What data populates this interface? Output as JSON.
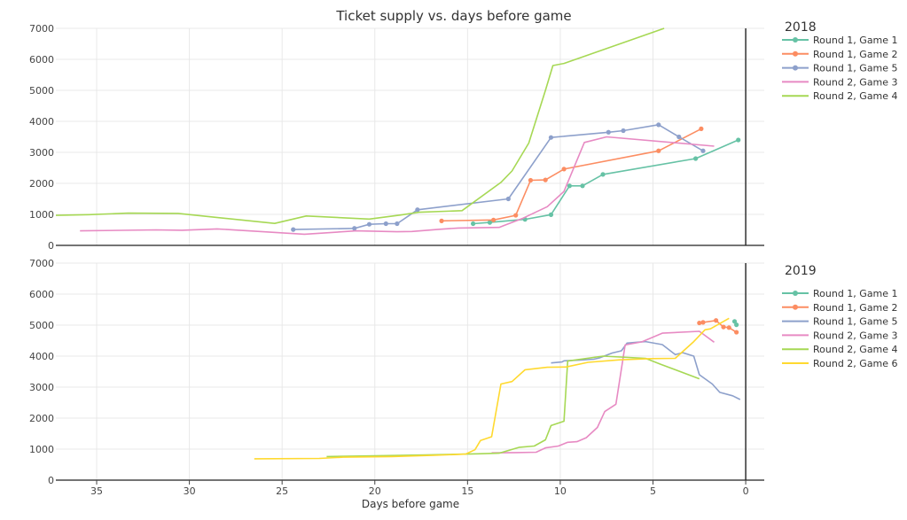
{
  "chart_data": {
    "type": "line",
    "title": "Ticket supply vs. days before game",
    "xlabel": "Days before game",
    "ylabel": "",
    "x_direction": "reversed",
    "xlim": [
      37.2,
      -1.0
    ],
    "x_ticks": [
      35,
      30,
      25,
      20,
      15,
      10,
      5,
      0
    ],
    "grid": true,
    "legend_placement": "right",
    "panels": [
      {
        "legend_title": "2018",
        "ylim": [
          0,
          7000
        ],
        "y_ticks": [
          0,
          1000,
          2000,
          3000,
          4000,
          5000,
          6000,
          7000
        ],
        "series": [
          {
            "name": "Round 1, Game 1",
            "color": "#66c2a5",
            "markers": true,
            "points": [
              [
                14.7,
                700
              ],
              [
                13.8,
                740
              ],
              [
                11.9,
                840
              ],
              [
                10.5,
                990
              ],
              [
                9.5,
                1920
              ],
              [
                8.8,
                1920
              ],
              [
                7.7,
                2290
              ],
              [
                2.7,
                2800
              ],
              [
                0.4,
                3400
              ]
            ]
          },
          {
            "name": "Round 1, Game 2",
            "color": "#fc8d62",
            "markers": true,
            "points": [
              [
                16.4,
                790
              ],
              [
                13.6,
                820
              ],
              [
                12.4,
                970
              ],
              [
                11.6,
                2100
              ],
              [
                10.8,
                2110
              ],
              [
                9.8,
                2460
              ],
              [
                4.7,
                3050
              ],
              [
                2.4,
                3760
              ]
            ]
          },
          {
            "name": "Round 1, Game 5",
            "color": "#8da0cb",
            "markers": true,
            "points": [
              [
                24.4,
                510
              ],
              [
                21.1,
                550
              ],
              [
                20.3,
                680
              ],
              [
                19.4,
                700
              ],
              [
                18.8,
                700
              ],
              [
                17.7,
                1150
              ],
              [
                12.8,
                1500
              ],
              [
                10.5,
                3480
              ],
              [
                7.4,
                3650
              ],
              [
                6.6,
                3700
              ],
              [
                4.7,
                3890
              ],
              [
                3.6,
                3500
              ],
              [
                2.3,
                3050
              ]
            ]
          },
          {
            "name": "Round 2, Game 3",
            "color": "#e78ac3",
            "markers": false,
            "points": [
              [
                35.9,
                470
              ],
              [
                31.8,
                500
              ],
              [
                30.4,
                490
              ],
              [
                28.5,
                530
              ],
              [
                23.8,
                360
              ],
              [
                21.0,
                470
              ],
              [
                18.8,
                440
              ],
              [
                18.0,
                450
              ],
              [
                16.5,
                520
              ],
              [
                15.5,
                560
              ],
              [
                13.3,
                580
              ],
              [
                12.0,
                880
              ],
              [
                10.7,
                1250
              ],
              [
                9.8,
                1740
              ],
              [
                8.7,
                3320
              ],
              [
                7.5,
                3500
              ],
              [
                1.7,
                3200
              ]
            ]
          },
          {
            "name": "Round 2, Game 4",
            "color": "#a6d854",
            "markers": false,
            "points": [
              [
                37.2,
                970
              ],
              [
                35.4,
                990
              ],
              [
                33.3,
                1040
              ],
              [
                30.6,
                1030
              ],
              [
                25.4,
                710
              ],
              [
                23.7,
                950
              ],
              [
                20.3,
                850
              ],
              [
                18.6,
                980
              ],
              [
                17.6,
                1070
              ],
              [
                15.3,
                1120
              ],
              [
                13.2,
                2030
              ],
              [
                12.6,
                2400
              ],
              [
                11.7,
                3300
              ],
              [
                10.8,
                5000
              ],
              [
                10.4,
                5800
              ],
              [
                9.8,
                5870
              ],
              [
                4.4,
                7000
              ]
            ]
          }
        ]
      },
      {
        "legend_title": "2019",
        "ylim": [
          0,
          7000
        ],
        "y_ticks": [
          0,
          1000,
          2000,
          3000,
          4000,
          5000,
          6000,
          7000
        ],
        "series": [
          {
            "name": "Round 1, Game 1",
            "color": "#66c2a5",
            "markers": true,
            "points": [
              [
                0.6,
                5120
              ],
              [
                0.5,
                5010
              ]
            ]
          },
          {
            "name": "Round 1, Game 2",
            "color": "#fc8d62",
            "markers": true,
            "points": [
              [
                2.5,
                5070
              ],
              [
                2.3,
                5090
              ],
              [
                1.6,
                5150
              ],
              [
                1.2,
                4940
              ],
              [
                0.9,
                4920
              ],
              [
                0.5,
                4770
              ]
            ]
          },
          {
            "name": "Round 1, Game 5",
            "color": "#8da0cb",
            "markers": false,
            "points": [
              [
                10.5,
                3780
              ],
              [
                9.9,
                3810
              ],
              [
                9.8,
                3850
              ],
              [
                9.0,
                3870
              ],
              [
                8.2,
                3900
              ],
              [
                7.9,
                3940
              ],
              [
                7.2,
                4100
              ],
              [
                6.7,
                4170
              ],
              [
                6.4,
                4420
              ],
              [
                5.4,
                4470
              ],
              [
                4.5,
                4370
              ],
              [
                3.8,
                4050
              ],
              [
                3.4,
                4110
              ],
              [
                2.8,
                4000
              ],
              [
                2.5,
                3400
              ],
              [
                1.8,
                3100
              ],
              [
                1.4,
                2830
              ],
              [
                0.7,
                2720
              ],
              [
                0.3,
                2600
              ]
            ]
          },
          {
            "name": "Round 2, Game 3",
            "color": "#e78ac3",
            "markers": false,
            "points": [
              [
                13.7,
                880
              ],
              [
                12.4,
                890
              ],
              [
                11.3,
                900
              ],
              [
                10.8,
                1040
              ],
              [
                10.1,
                1100
              ],
              [
                9.6,
                1220
              ],
              [
                9.1,
                1240
              ],
              [
                8.6,
                1370
              ],
              [
                8.0,
                1700
              ],
              [
                7.6,
                2210
              ],
              [
                7.0,
                2450
              ],
              [
                6.5,
                4360
              ],
              [
                5.6,
                4460
              ],
              [
                4.5,
                4740
              ],
              [
                2.5,
                4800
              ],
              [
                1.7,
                4450
              ]
            ]
          },
          {
            "name": "Round 2, Game 4",
            "color": "#a6d854",
            "markers": false,
            "points": [
              [
                22.6,
                760
              ],
              [
                20.4,
                780
              ],
              [
                17.3,
                810
              ],
              [
                14.5,
                850
              ],
              [
                13.3,
                870
              ],
              [
                12.2,
                1060
              ],
              [
                11.4,
                1100
              ],
              [
                10.8,
                1300
              ],
              [
                10.5,
                1760
              ],
              [
                9.8,
                1900
              ],
              [
                9.6,
                3840
              ],
              [
                7.7,
                4000
              ],
              [
                5.4,
                3930
              ],
              [
                4.6,
                3740
              ],
              [
                2.5,
                3270
              ]
            ]
          },
          {
            "name": "Round 2, Game 6",
            "color": "#ffd92f",
            "markers": false,
            "points": [
              [
                26.5,
                690
              ],
              [
                23.0,
                700
              ],
              [
                21.7,
                740
              ],
              [
                19.1,
                760
              ],
              [
                16.8,
                800
              ],
              [
                15.1,
                840
              ],
              [
                14.6,
                980
              ],
              [
                14.3,
                1280
              ],
              [
                13.7,
                1400
              ],
              [
                13.2,
                3100
              ],
              [
                12.6,
                3180
              ],
              [
                11.9,
                3560
              ],
              [
                10.7,
                3640
              ],
              [
                9.7,
                3650
              ],
              [
                8.5,
                3800
              ],
              [
                6.8,
                3880
              ],
              [
                5.1,
                3920
              ],
              [
                3.8,
                3930
              ],
              [
                2.8,
                4470
              ],
              [
                2.2,
                4850
              ],
              [
                1.9,
                4880
              ],
              [
                0.9,
                5220
              ]
            ]
          }
        ]
      }
    ]
  }
}
